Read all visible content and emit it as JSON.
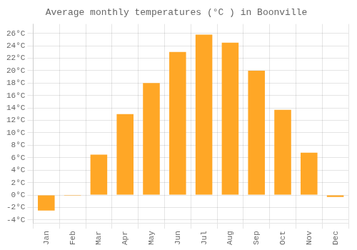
{
  "chart_data": {
    "type": "bar",
    "title": "Average monthly temperatures (°C ) in Boonville",
    "categories": [
      "Jan",
      "Feb",
      "Mar",
      "Apr",
      "May",
      "Jun",
      "Jul",
      "Aug",
      "Sep",
      "Oct",
      "Nov",
      "Dec"
    ],
    "values": [
      -2.5,
      -0.1,
      6.5,
      13.0,
      18.0,
      23.0,
      25.8,
      24.5,
      20.0,
      13.7,
      6.8,
      -0.3
    ],
    "color": "#FFA726",
    "ylim": [
      -4.5,
      27.5
    ],
    "yticks": [
      {
        "value": -4,
        "label": "-4°C"
      },
      {
        "value": -2,
        "label": "-2°C"
      },
      {
        "value": 0,
        "label": "0°C"
      },
      {
        "value": 2,
        "label": "2°C"
      },
      {
        "value": 4,
        "label": "4°C"
      },
      {
        "value": 6,
        "label": "6°C"
      },
      {
        "value": 8,
        "label": "8°C"
      },
      {
        "value": 10,
        "label": "10°C"
      },
      {
        "value": 12,
        "label": "12°C"
      },
      {
        "value": 14,
        "label": "14°C"
      },
      {
        "value": 16,
        "label": "16°C"
      },
      {
        "value": 18,
        "label": "18°C"
      },
      {
        "value": 20,
        "label": "20°C"
      },
      {
        "value": 22,
        "label": "22°C"
      },
      {
        "value": 24,
        "label": "24°C"
      },
      {
        "value": 26,
        "label": "26°C"
      }
    ],
    "grid": true
  }
}
